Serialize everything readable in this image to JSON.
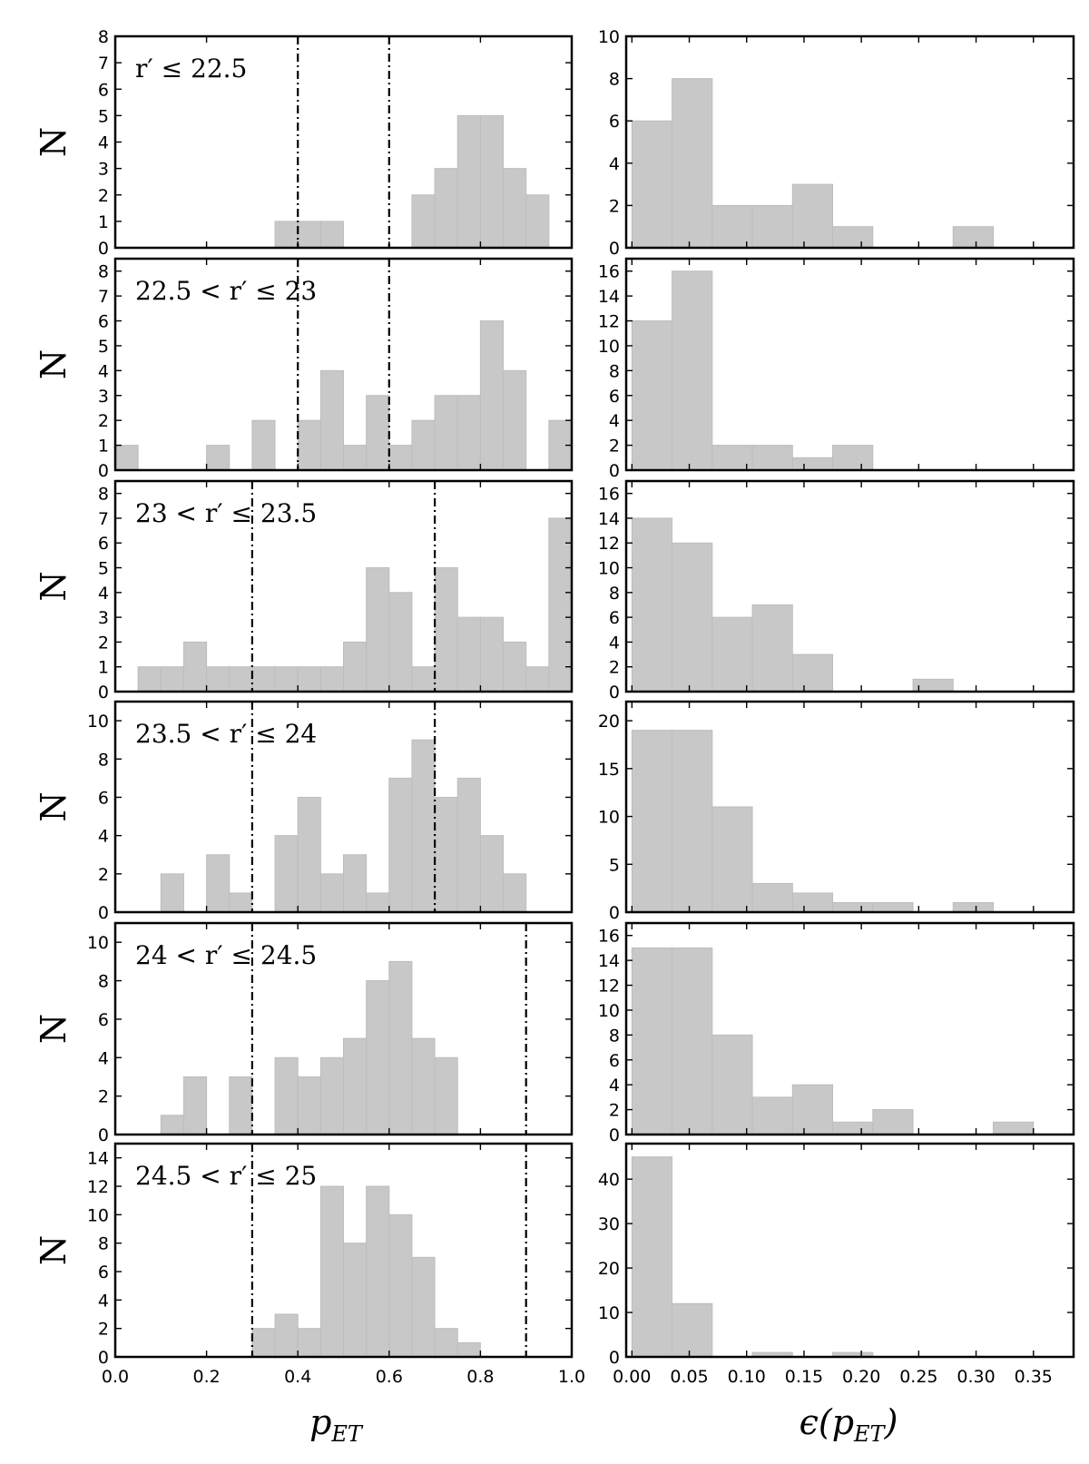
{
  "chart_data": [
    {
      "type": "bar",
      "panel": "left",
      "row": 0,
      "label": "r′ ≤ 22.5",
      "ylabel": "N",
      "xlabel": "",
      "xlim": [
        0,
        1
      ],
      "ylim": [
        0,
        8
      ],
      "yticks": [
        0,
        1,
        2,
        3,
        4,
        5,
        6,
        7,
        8
      ],
      "bin_width": 0.05,
      "bins": [
        0.35,
        0.4,
        0.45,
        0.65,
        0.7,
        0.75,
        0.8,
        0.85,
        0.9
      ],
      "values": [
        1,
        1,
        1,
        2,
        3,
        5,
        5,
        3,
        2
      ],
      "vlines": [
        0.4,
        0.6
      ]
    },
    {
      "type": "bar",
      "panel": "left",
      "row": 1,
      "label": "22.5 < r′ ≤ 23",
      "ylabel": "N",
      "xlabel": "",
      "xlim": [
        0,
        1
      ],
      "ylim": [
        0,
        8.5
      ],
      "yticks": [
        0,
        1,
        2,
        3,
        4,
        5,
        6,
        7,
        8
      ],
      "bin_width": 0.05,
      "bins": [
        0.0,
        0.2,
        0.3,
        0.4,
        0.45,
        0.5,
        0.55,
        0.6,
        0.65,
        0.7,
        0.75,
        0.8,
        0.85,
        0.95
      ],
      "values": [
        1,
        1,
        2,
        2,
        4,
        1,
        3,
        1,
        2,
        3,
        3,
        6,
        4,
        2
      ],
      "vlines": [
        0.4,
        0.6
      ]
    },
    {
      "type": "bar",
      "panel": "left",
      "row": 2,
      "label": "23 < r′ ≤ 23.5",
      "ylabel": "N",
      "xlabel": "",
      "xlim": [
        0,
        1
      ],
      "ylim": [
        0,
        8.5
      ],
      "yticks": [
        0,
        1,
        2,
        3,
        4,
        5,
        6,
        7,
        8
      ],
      "bin_width": 0.05,
      "bins": [
        0.05,
        0.1,
        0.15,
        0.2,
        0.25,
        0.3,
        0.35,
        0.4,
        0.45,
        0.5,
        0.55,
        0.6,
        0.65,
        0.7,
        0.75,
        0.8,
        0.85,
        0.9,
        0.95
      ],
      "values": [
        1,
        1,
        2,
        1,
        1,
        1,
        1,
        1,
        1,
        2,
        5,
        4,
        1,
        5,
        3,
        3,
        2,
        1,
        7
      ],
      "vlines": [
        0.3,
        0.7
      ]
    },
    {
      "type": "bar",
      "panel": "left",
      "row": 3,
      "label": "23.5 < r′ ≤ 24",
      "ylabel": "N",
      "xlabel": "",
      "xlim": [
        0,
        1
      ],
      "ylim": [
        0,
        11
      ],
      "yticks": [
        0,
        2,
        4,
        6,
        8,
        10
      ],
      "bin_width": 0.05,
      "bins": [
        0.1,
        0.2,
        0.25,
        0.35,
        0.4,
        0.45,
        0.5,
        0.55,
        0.6,
        0.65,
        0.7,
        0.75,
        0.8,
        0.85
      ],
      "values": [
        2,
        3,
        1,
        4,
        6,
        2,
        3,
        1,
        7,
        9,
        6,
        7,
        4,
        2
      ],
      "vlines": [
        0.3,
        0.7
      ]
    },
    {
      "type": "bar",
      "panel": "left",
      "row": 4,
      "label": "24 < r′ ≤ 24.5",
      "ylabel": "N",
      "xlabel": "",
      "xlim": [
        0,
        1
      ],
      "ylim": [
        0,
        11
      ],
      "yticks": [
        0,
        2,
        4,
        6,
        8,
        10
      ],
      "bin_width": 0.05,
      "bins": [
        0.1,
        0.15,
        0.25,
        0.35,
        0.4,
        0.45,
        0.5,
        0.55,
        0.6,
        0.65,
        0.7
      ],
      "values": [
        1,
        3,
        3,
        4,
        3,
        4,
        5,
        8,
        9,
        5,
        4
      ],
      "vlines": [
        0.3,
        0.9
      ]
    },
    {
      "type": "bar",
      "panel": "left",
      "row": 5,
      "label": "24.5 < r′ ≤ 25",
      "ylabel": "N",
      "xlabel": "p_ET",
      "xlim": [
        0,
        1
      ],
      "ylim": [
        0,
        15
      ],
      "yticks": [
        0,
        2,
        4,
        6,
        8,
        10,
        12,
        14
      ],
      "xticks": [
        "0.0",
        "0.2",
        "0.4",
        "0.6",
        "0.8",
        "1.0"
      ],
      "xtick_values": [
        0,
        0.2,
        0.4,
        0.6,
        0.8,
        1.0
      ],
      "bin_width": 0.05,
      "bins": [
        0.3,
        0.35,
        0.4,
        0.45,
        0.5,
        0.55,
        0.6,
        0.65,
        0.7,
        0.75
      ],
      "values": [
        2,
        3,
        2,
        12,
        8,
        12,
        10,
        7,
        2,
        1
      ],
      "vlines": [
        0.3,
        0.9
      ]
    },
    {
      "type": "bar",
      "panel": "right",
      "row": 0,
      "xlabel": "",
      "xlim": [
        -0.005,
        0.385
      ],
      "ylim": [
        0,
        10
      ],
      "yticks": [
        0,
        2,
        4,
        6,
        8,
        10
      ],
      "bin_width": 0.035,
      "bins": [
        0.0,
        0.035,
        0.07,
        0.105,
        0.14,
        0.175,
        0.21,
        0.245,
        0.28
      ],
      "values": [
        6,
        8,
        2,
        2,
        3,
        1,
        0,
        0,
        1
      ]
    },
    {
      "type": "bar",
      "panel": "right",
      "row": 1,
      "xlabel": "",
      "xlim": [
        -0.005,
        0.385
      ],
      "ylim": [
        0,
        17
      ],
      "yticks": [
        0,
        2,
        4,
        6,
        8,
        10,
        12,
        14,
        16
      ],
      "bin_width": 0.035,
      "bins": [
        0.0,
        0.035,
        0.07,
        0.105,
        0.14,
        0.175
      ],
      "values": [
        12,
        16,
        2,
        2,
        1,
        2
      ]
    },
    {
      "type": "bar",
      "panel": "right",
      "row": 2,
      "xlabel": "",
      "xlim": [
        -0.005,
        0.385
      ],
      "ylim": [
        0,
        17
      ],
      "yticks": [
        0,
        2,
        4,
        6,
        8,
        10,
        12,
        14,
        16
      ],
      "bin_width": 0.035,
      "bins": [
        0.0,
        0.035,
        0.07,
        0.105,
        0.14,
        0.175,
        0.21,
        0.245
      ],
      "values": [
        14,
        12,
        6,
        7,
        3,
        0,
        0,
        1
      ]
    },
    {
      "type": "bar",
      "panel": "right",
      "row": 3,
      "xlabel": "",
      "xlim": [
        -0.005,
        0.385
      ],
      "ylim": [
        0,
        22
      ],
      "yticks": [
        0,
        5,
        10,
        15,
        20
      ],
      "bin_width": 0.035,
      "bins": [
        0.0,
        0.035,
        0.07,
        0.105,
        0.14,
        0.175,
        0.21,
        0.245,
        0.28
      ],
      "values": [
        19,
        19,
        11,
        3,
        2,
        1,
        1,
        0,
        1
      ]
    },
    {
      "type": "bar",
      "panel": "right",
      "row": 4,
      "xlabel": "",
      "xlim": [
        -0.005,
        0.385
      ],
      "ylim": [
        0,
        17
      ],
      "yticks": [
        0,
        2,
        4,
        6,
        8,
        10,
        12,
        14,
        16
      ],
      "bin_width": 0.035,
      "bins": [
        0.0,
        0.035,
        0.07,
        0.105,
        0.14,
        0.175,
        0.21,
        0.245,
        0.28,
        0.315
      ],
      "values": [
        15,
        15,
        8,
        3,
        4,
        1,
        2,
        0,
        0,
        1
      ]
    },
    {
      "type": "bar",
      "panel": "right",
      "row": 5,
      "xlabel": "ϵ(p_ET)",
      "xlim": [
        -0.005,
        0.385
      ],
      "ylim": [
        0,
        48
      ],
      "yticks": [
        0,
        10,
        20,
        30,
        40
      ],
      "xticks": [
        "0.00",
        "0.05",
        "0.10",
        "0.15",
        "0.20",
        "0.25",
        "0.30",
        "0.35"
      ],
      "xtick_values": [
        0,
        0.05,
        0.1,
        0.15,
        0.2,
        0.25,
        0.3,
        0.35
      ],
      "bin_width": 0.035,
      "bins": [
        0.0,
        0.035,
        0.07,
        0.105,
        0.14,
        0.175
      ],
      "values": [
        45,
        12,
        0,
        1,
        0,
        1
      ]
    }
  ],
  "labels": {
    "left_xlabel_main": "p",
    "left_xlabel_sub": "ET",
    "right_xlabel_main": "ϵ(p",
    "right_xlabel_sub": "ET",
    "right_xlabel_close": ")",
    "ylabel": "N"
  }
}
